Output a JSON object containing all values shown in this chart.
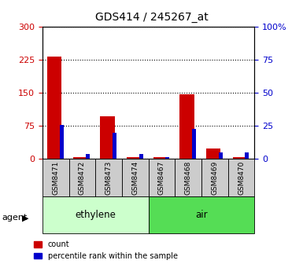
{
  "title": "GDS414 / 245267_at",
  "samples": [
    "GSM8471",
    "GSM8472",
    "GSM8473",
    "GSM8474",
    "GSM8467",
    "GSM8468",
    "GSM8469",
    "GSM8470"
  ],
  "counts": [
    232,
    2,
    95,
    2,
    3,
    145,
    22,
    3
  ],
  "percentiles_left_scale": [
    76,
    10,
    58,
    10,
    3,
    67,
    13,
    13
  ],
  "groups": [
    {
      "label": "ethylene",
      "start": 0,
      "end": 4,
      "color": "#ccffcc"
    },
    {
      "label": "air",
      "start": 4,
      "end": 8,
      "color": "#55dd55"
    }
  ],
  "group_label": "agent",
  "left_yticks": [
    0,
    75,
    150,
    225,
    300
  ],
  "right_yticks": [
    0,
    25,
    50,
    75,
    100
  ],
  "bar_color_red": "#cc0000",
  "bar_color_blue": "#0000cc",
  "left_tick_color": "#cc0000",
  "right_tick_color": "#0000cc",
  "legend_items": [
    "count",
    "percentile rank within the sample"
  ],
  "fig_width": 3.85,
  "fig_height": 3.36
}
